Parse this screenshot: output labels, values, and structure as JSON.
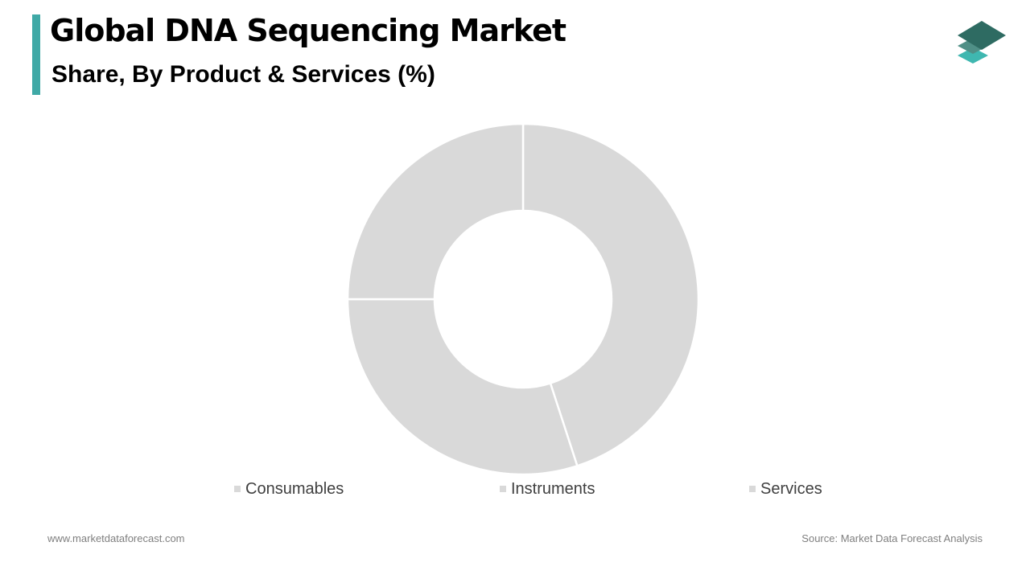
{
  "header": {
    "title": "Global DNA Sequencing Market",
    "subtitle": "Share, By Product & Services (%)"
  },
  "footer": {
    "website": "www.marketdataforecast.com",
    "source": "Source: Market Data Forecast Analysis"
  },
  "colors": {
    "accent": "#3fa9a6",
    "slice_fill": "#d9d9d9",
    "slice_border": "#ffffff",
    "logo_dark": "#2e6b62",
    "logo_mid": "#4f8f86",
    "logo_light": "#3fb7b0"
  },
  "icons": {
    "logo": "stacked-layers-icon"
  },
  "chart_data": {
    "type": "pie",
    "variant": "donut",
    "categories": [
      "Consumables",
      "Instruments",
      "Services"
    ],
    "values": [
      45,
      30,
      25
    ],
    "unit": "%",
    "legend": "bottom"
  }
}
